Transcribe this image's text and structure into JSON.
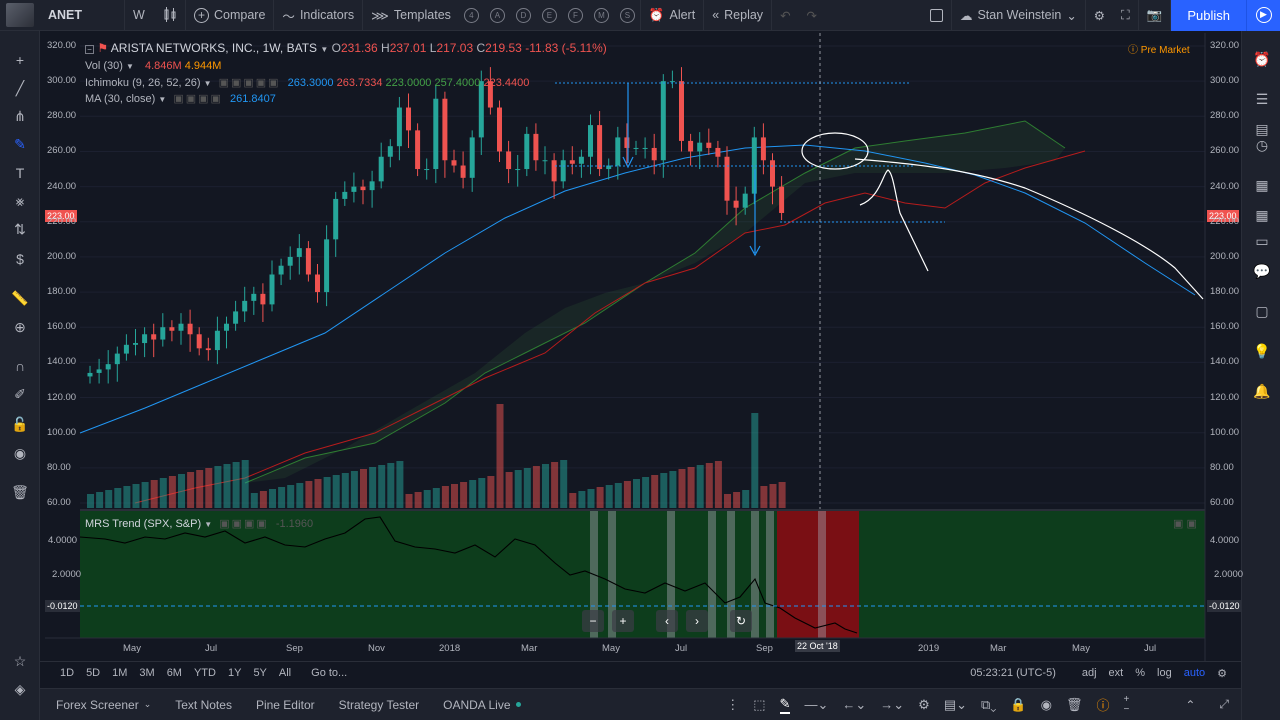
{
  "toolbar": {
    "symbol": "ANET",
    "interval": "W",
    "compare": "Compare",
    "indicators": "Indicators",
    "templates": "Templates",
    "template_circles": [
      "4",
      "A",
      "D",
      "E",
      "F",
      "M",
      "S"
    ],
    "alert": "Alert",
    "replay": "Replay",
    "layout_name": "Stan Weinstein",
    "publish": "Publish"
  },
  "legend": {
    "main": {
      "title": "ARISTA NETWORKS, INC., 1W, BATS",
      "o_label": "O",
      "o": "231.36",
      "h_label": "H",
      "h": "237.01",
      "l_label": "L",
      "l": "217.03",
      "c_label": "C",
      "c": "219.53",
      "change": "-11.83 (-5.11%)"
    },
    "vol": {
      "name": "Vol (30)",
      "v1": "4.846M",
      "v2": "4.944M"
    },
    "ichimoku": {
      "name": "Ichimoku (9, 26, 52, 26)",
      "v1": "263.3000",
      "v2": "263.7334",
      "v3": "223.0000",
      "v4": "257.4000",
      "v5": "223.4400"
    },
    "ma": {
      "name": "MA (30, close)",
      "v1": "261.8407"
    },
    "premarket": "Pre Market",
    "mrs": {
      "name": "MRS Trend (SPX, S&P)",
      "v1": "-1.1960"
    }
  },
  "price_axis": {
    "ticks": [
      "320.00",
      "300.00",
      "280.00",
      "260.00",
      "240.00",
      "220.00",
      "200.00",
      "180.00",
      "160.00",
      "140.00",
      "120.00",
      "100.00",
      "80.00",
      "60.00"
    ],
    "current": "223.00"
  },
  "mrs_axis": {
    "ticks": [
      "4.0000",
      "2.0000"
    ],
    "current": "-0.0120"
  },
  "time_axis": {
    "ticks": [
      "May",
      "Jul",
      "Sep",
      "Nov",
      "2018",
      "Mar",
      "May",
      "Jul",
      "Sep",
      "Oct",
      "2019",
      "Mar",
      "May",
      "Jul"
    ],
    "crosshair": "22 Oct '18"
  },
  "bottombar": {
    "ranges": [
      "1D",
      "5D",
      "1M",
      "3M",
      "6M",
      "YTD",
      "1Y",
      "5Y",
      "All"
    ],
    "goto": "Go to...",
    "time": "05:23:21 (UTC-5)",
    "adj": "adj",
    "ext": "ext",
    "pct": "%",
    "log": "log",
    "auto": "auto"
  },
  "footer": {
    "tabs": [
      "Forex Screener",
      "Text Notes",
      "Pine Editor",
      "Strategy Tester",
      "OANDA Live"
    ]
  },
  "colors": {
    "up": "#26a69a",
    "down": "#ef5350",
    "ma": "#2196f3",
    "accent": "#2962ff",
    "premarket": "#ff9800"
  },
  "chart_data": {
    "type": "candlestick",
    "title": "ARISTA NETWORKS, INC., 1W, BATS",
    "close_series": [
      134,
      136,
      139,
      145,
      150,
      151,
      156,
      153,
      160,
      158,
      162,
      156,
      148,
      147,
      158,
      162,
      169,
      175,
      179,
      173,
      190,
      195,
      200,
      205,
      190,
      180,
      210,
      233,
      237,
      240,
      238,
      243,
      257,
      263,
      285,
      272,
      250,
      250,
      290,
      255,
      252,
      245,
      268,
      300,
      285,
      260,
      250,
      250,
      270,
      255,
      255,
      243,
      255,
      253,
      257,
      275,
      250,
      252,
      268,
      262,
      262,
      262,
      255,
      300,
      300,
      266,
      260,
      265,
      262,
      257,
      232,
      228,
      236,
      268,
      255,
      240,
      225
    ],
    "ylim": [
      60,
      320
    ]
  }
}
